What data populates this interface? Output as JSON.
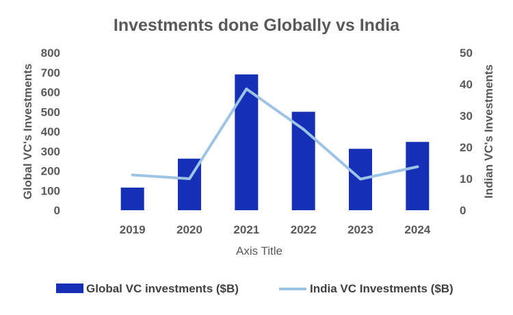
{
  "chart_data": {
    "type": "bar",
    "title": "Investments done Globally vs India",
    "xlabel": "Axis Title",
    "ylabel": "Global VC's Investments",
    "y2label": "Indian VC's Investments",
    "categories": [
      "2019",
      "2020",
      "2021",
      "2022",
      "2023",
      "2024"
    ],
    "ylim": [
      0,
      800
    ],
    "yticks": [
      0,
      100,
      200,
      300,
      400,
      500,
      600,
      700,
      800
    ],
    "y2lim": [
      0,
      50
    ],
    "y2ticks": [
      0,
      10,
      20,
      30,
      40,
      50
    ],
    "grid": false,
    "legend_position": "bottom",
    "series": [
      {
        "name": "Global VC investments ($B)",
        "type": "bar",
        "axis": "left",
        "color": "#1530B4",
        "values": [
          115,
          262,
          690,
          500,
          312,
          347
        ]
      },
      {
        "name": "India VC Investments ($B)",
        "type": "line",
        "axis": "right",
        "color": "#9DC3E6",
        "values": [
          11.2,
          10,
          38.5,
          25.7,
          9.9,
          13.8
        ]
      }
    ]
  }
}
